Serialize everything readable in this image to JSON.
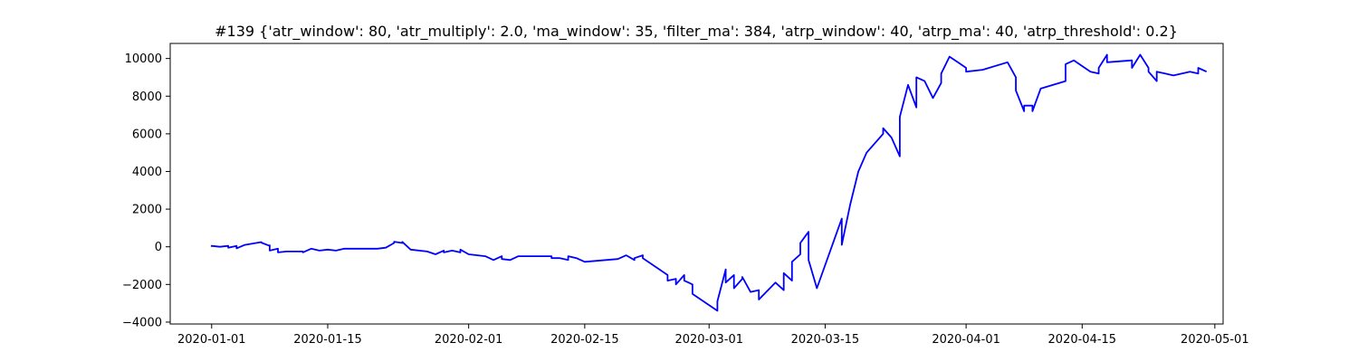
{
  "chart_data": {
    "type": "line",
    "title": "#139 {'atr_window': 80, 'atr_multiply': 2.0, 'ma_window': 35, 'filter_ma': 384, 'atrp_window': 40, 'atrp_ma': 40, 'atrp_threshold': 0.2}",
    "xlabel": "",
    "ylabel": "",
    "x_axis_type": "date",
    "xlim": [
      "2019-12-27",
      "2020-05-02"
    ],
    "ylim": [
      -4100,
      10800
    ],
    "grid": false,
    "x_ticks": [
      "2020-01-01",
      "2020-01-15",
      "2020-02-01",
      "2020-02-15",
      "2020-03-01",
      "2020-03-15",
      "2020-04-01",
      "2020-04-15",
      "2020-05-01"
    ],
    "x_tick_labels": [
      "2020-01-01",
      "2020-01-15",
      "2020-02-01",
      "2020-02-15",
      "2020-03-01",
      "2020-03-15",
      "2020-04-01",
      "2020-04-15",
      "2020-05-01"
    ],
    "y_ticks": [
      -4000,
      -2000,
      0,
      2000,
      4000,
      6000,
      8000,
      10000
    ],
    "y_tick_labels": [
      "−4000",
      "−2000",
      "0",
      "2000",
      "4000",
      "6000",
      "8000",
      "10000"
    ],
    "series": [
      {
        "color": "#0000ff",
        "x": [
          "2020-01-01",
          "2020-01-01",
          "2020-01-02",
          "2020-01-03",
          "2020-01-03",
          "2020-01-04",
          "2020-01-04",
          "2020-01-05",
          "2020-01-07",
          "2020-01-07",
          "2020-01-08",
          "2020-01-08",
          "2020-01-08",
          "2020-01-09",
          "2020-01-09",
          "2020-01-10",
          "2020-01-12",
          "2020-01-12",
          "2020-01-13",
          "2020-01-14",
          "2020-01-15",
          "2020-01-16",
          "2020-01-17",
          "2020-01-18",
          "2020-01-19",
          "2020-01-21",
          "2020-01-22",
          "2020-01-23",
          "2020-01-23",
          "2020-01-24",
          "2020-01-24",
          "2020-01-25",
          "2020-01-27",
          "2020-01-28",
          "2020-01-29",
          "2020-01-29",
          "2020-01-30",
          "2020-01-31",
          "2020-01-31",
          "2020-02-01",
          "2020-02-03",
          "2020-02-04",
          "2020-02-05",
          "2020-02-05",
          "2020-02-06",
          "2020-02-07",
          "2020-02-11",
          "2020-02-11",
          "2020-02-12",
          "2020-02-13",
          "2020-02-13",
          "2020-02-14",
          "2020-02-15",
          "2020-02-19",
          "2020-02-20",
          "2020-02-21",
          "2020-02-21",
          "2020-02-22",
          "2020-02-22",
          "2020-02-25",
          "2020-02-25",
          "2020-02-26",
          "2020-02-26",
          "2020-02-27",
          "2020-02-27",
          "2020-02-28",
          "2020-02-28",
          "2020-02-29",
          "2020-03-02",
          "2020-03-02",
          "2020-03-03",
          "2020-03-03",
          "2020-03-04",
          "2020-03-04",
          "2020-03-05",
          "2020-03-05",
          "2020-03-06",
          "2020-03-07",
          "2020-03-07",
          "2020-03-09",
          "2020-03-10",
          "2020-03-10",
          "2020-03-11",
          "2020-03-11",
          "2020-03-12",
          "2020-03-12",
          "2020-03-13",
          "2020-03-13",
          "2020-03-14",
          "2020-03-17",
          "2020-03-17",
          "2020-03-18",
          "2020-03-19",
          "2020-03-20",
          "2020-03-22",
          "2020-03-22",
          "2020-03-23",
          "2020-03-24",
          "2020-03-24",
          "2020-03-25",
          "2020-03-26",
          "2020-03-26",
          "2020-03-27",
          "2020-03-28",
          "2020-03-29",
          "2020-03-29",
          "2020-03-30",
          "2020-03-31",
          "2020-04-01",
          "2020-04-01",
          "2020-04-03",
          "2020-04-06",
          "2020-04-07",
          "2020-04-07",
          "2020-04-08",
          "2020-04-08",
          "2020-04-09",
          "2020-04-09",
          "2020-04-10",
          "2020-04-13",
          "2020-04-13",
          "2020-04-14",
          "2020-04-15",
          "2020-04-16",
          "2020-04-17",
          "2020-04-17",
          "2020-04-18",
          "2020-04-18",
          "2020-04-21",
          "2020-04-21",
          "2020-04-21",
          "2020-04-22",
          "2020-04-23",
          "2020-04-23",
          "2020-04-24",
          "2020-04-24",
          "2020-04-25",
          "2020-04-26",
          "2020-04-28",
          "2020-04-29",
          "2020-04-29",
          "2020-04-30"
        ],
        "y": [
          0,
          50,
          0,
          50,
          -50,
          50,
          -80,
          100,
          250,
          220,
          50,
          80,
          -200,
          -100,
          -300,
          -250,
          -250,
          -300,
          -100,
          -200,
          -150,
          -200,
          -100,
          -100,
          -100,
          -100,
          -50,
          200,
          270,
          200,
          260,
          -150,
          -250,
          -400,
          -200,
          -300,
          -200,
          -300,
          -150,
          -400,
          -500,
          -700,
          -500,
          -650,
          -700,
          -500,
          -500,
          -600,
          -600,
          -700,
          -500,
          -600,
          -800,
          -650,
          -450,
          -700,
          -600,
          -450,
          -600,
          -1500,
          -1800,
          -1700,
          -2000,
          -1500,
          -1800,
          -2000,
          -2500,
          -2800,
          -3400,
          -2900,
          -1200,
          -1900,
          -1500,
          -2200,
          -1700,
          -1600,
          -2400,
          -2300,
          -2800,
          -1900,
          -2300,
          -1400,
          -1800,
          -800,
          -400,
          200,
          800,
          -700,
          -2200,
          1500,
          100,
          2200,
          4000,
          5000,
          6000,
          6300,
          5800,
          4800,
          6900,
          8600,
          7400,
          9000,
          8800,
          7900,
          8700,
          9200,
          10100,
          9800,
          9500,
          9300,
          9400,
          9800,
          9000,
          8300,
          7200,
          7500,
          7500,
          7200,
          8400,
          8800,
          9700,
          9900,
          9600,
          9300,
          9200,
          9500,
          10200,
          9800,
          9900,
          9900,
          9500,
          10200,
          9500,
          9300,
          8800,
          9300,
          9200,
          9100,
          9300,
          9200,
          9500,
          9300
        ]
      }
    ]
  }
}
